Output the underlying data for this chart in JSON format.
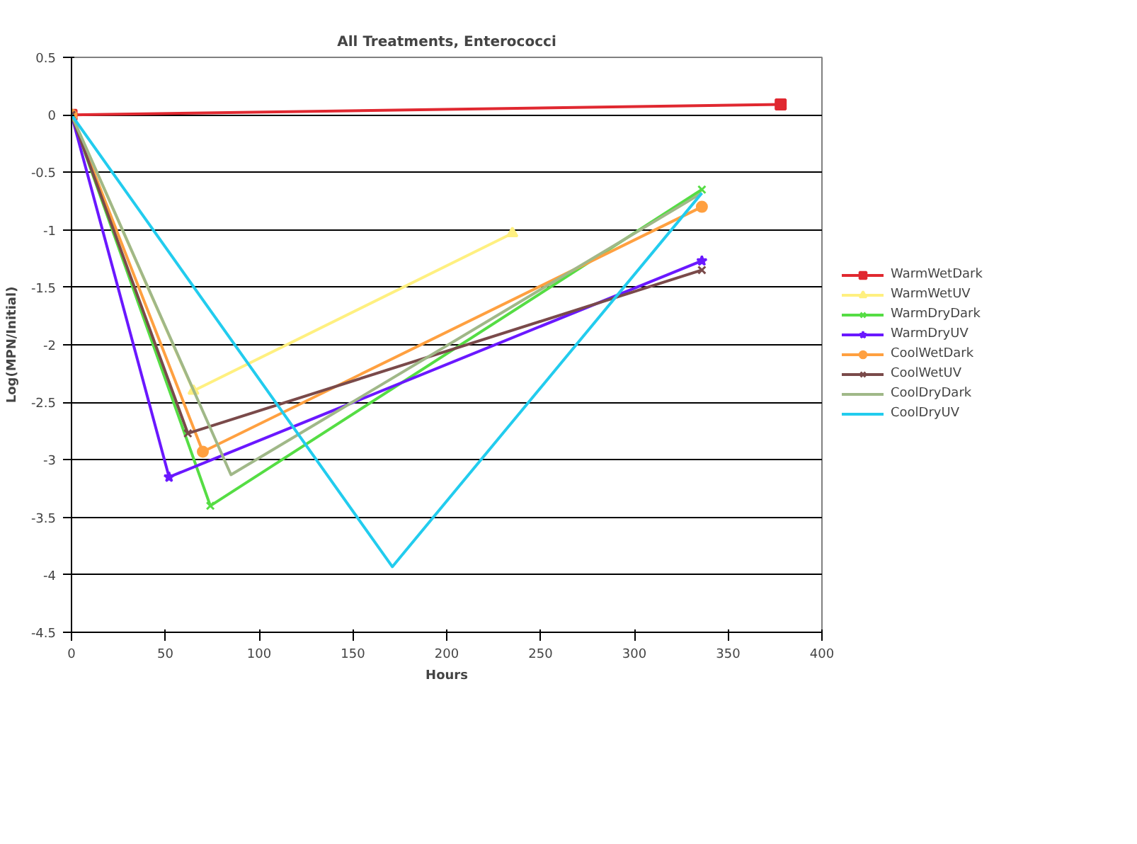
{
  "chart_data": {
    "type": "line",
    "title": "All Treatments, Enterococci",
    "xlabel": "Hours",
    "ylabel": "Log(MPN/Initial)",
    "xlim": [
      0,
      400
    ],
    "xticks": [
      0,
      50,
      100,
      150,
      200,
      250,
      300,
      350,
      400
    ],
    "ylim": [
      -4.5,
      0.5
    ],
    "yticks": [
      -4.5,
      -4,
      -3.5,
      -3,
      -2.5,
      -2,
      -1.5,
      -1,
      -0.5,
      0,
      0.5
    ],
    "grid": "y",
    "legend": "right",
    "series": [
      {
        "name": "WarmWetDark",
        "color": "#e02830",
        "marker": "square",
        "x": [
          0,
          378
        ],
        "values": [
          0,
          0.09
        ]
      },
      {
        "name": "WarmWetUV",
        "color": "#fff080",
        "marker": "triangle",
        "x": [
          0,
          65,
          235
        ],
        "values": [
          0,
          -2.4,
          -1.03
        ]
      },
      {
        "name": "WarmDryDark",
        "color": "#55dd44",
        "marker": "cross",
        "x": [
          0,
          74,
          336
        ],
        "values": [
          0,
          -3.4,
          -0.65
        ]
      },
      {
        "name": "WarmDryUV",
        "color": "#6a18ff",
        "marker": "star",
        "x": [
          0,
          52,
          336
        ],
        "values": [
          0,
          -3.15,
          -1.27
        ]
      },
      {
        "name": "CoolWetDark",
        "color": "#ffa040",
        "marker": "circle",
        "x": [
          0,
          70,
          336
        ],
        "values": [
          0,
          -2.93,
          -0.8
        ]
      },
      {
        "name": "CoolWetUV",
        "color": "#7a4a4a",
        "marker": "cross",
        "x": [
          0,
          62,
          336
        ],
        "values": [
          0,
          -2.77,
          -1.35
        ]
      },
      {
        "name": "CoolDryDark",
        "color": "#a0b888",
        "marker": "none",
        "x": [
          0,
          85,
          336
        ],
        "values": [
          0,
          -3.13,
          -0.68
        ]
      },
      {
        "name": "CoolDryUV",
        "color": "#22ccee",
        "marker": "none",
        "x": [
          0,
          171,
          336
        ],
        "values": [
          0,
          -3.93,
          -0.68
        ]
      }
    ]
  }
}
